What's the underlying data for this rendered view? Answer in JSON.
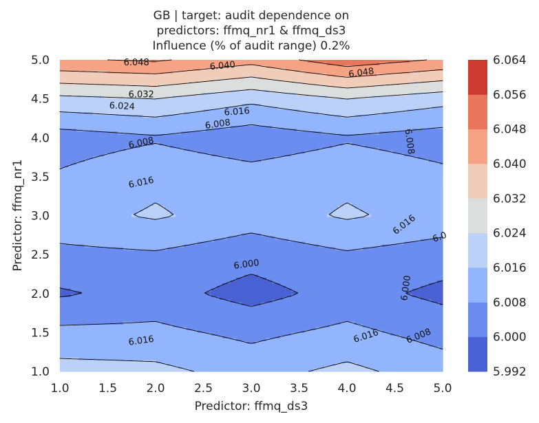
{
  "chart_data": {
    "type": "heatmap",
    "subtype": "filled-contour",
    "title_lines": [
      "GB | target: audit dependence on",
      "predictors: ffmq_nr1 & ffmq_ds3",
      "Influence (% of audit range) 0.2%"
    ],
    "xlabel": "Predictor: ffmq_ds3",
    "ylabel": "Predictor: ffmq_nr1",
    "xlim": [
      1.0,
      5.0
    ],
    "ylim": [
      1.0,
      5.0
    ],
    "x_ticks": [
      "1.0",
      "1.5",
      "2.0",
      "2.5",
      "3.0",
      "3.5",
      "4.0",
      "4.5",
      "5.0"
    ],
    "y_ticks": [
      "1.0",
      "1.5",
      "2.0",
      "2.5",
      "3.0",
      "3.5",
      "4.0",
      "4.5",
      "5.0"
    ],
    "x": [
      1.0,
      2.0,
      3.0,
      4.0,
      5.0
    ],
    "y": [
      1.0,
      1.5,
      2.0,
      2.5,
      3.0,
      3.5,
      4.0,
      4.5,
      5.0
    ],
    "z": [
      [
        6.019,
        6.018,
        6.013,
        6.018,
        6.012
      ],
      [
        6.01,
        6.01,
        6.006,
        6.01,
        6.005
      ],
      [
        5.999,
        6.003,
        5.997,
        6.003,
        5.998
      ],
      [
        6.006,
        6.007,
        6.003,
        6.007,
        6.004
      ],
      [
        6.013,
        6.017,
        6.012,
        6.017,
        6.013
      ],
      [
        6.009,
        6.014,
        6.011,
        6.014,
        6.01
      ],
      [
        6.004,
        6.007,
        6.003,
        6.007,
        6.004
      ],
      [
        6.022,
        6.024,
        6.018,
        6.024,
        6.019
      ],
      [
        6.047,
        6.049,
        6.043,
        6.053,
        6.047
      ]
    ],
    "levels": [
      5.992,
      6.0,
      6.008,
      6.016,
      6.024,
      6.032,
      6.04,
      6.048,
      6.056,
      6.064
    ],
    "colors": [
      "#4961d2",
      "#6b8df0",
      "#93b5fe",
      "#bbd1f8",
      "#dcdddd",
      "#f1cdb9",
      "#f6a385",
      "#e8765c",
      "#cc3a30"
    ],
    "colorbar_ticks": [
      "6.064",
      "6.056",
      "6.048",
      "6.040",
      "6.032",
      "6.024",
      "6.016",
      "6.008",
      "6.000",
      "5.992"
    ],
    "contour_labels": [
      {
        "text": "6.048",
        "x": 1.8,
        "y": 4.96,
        "angle": 0
      },
      {
        "text": "6.040",
        "x": 2.7,
        "y": 4.92,
        "angle": -5
      },
      {
        "text": "6.048",
        "x": 4.15,
        "y": 4.83,
        "angle": -8
      },
      {
        "text": "6.032",
        "x": 1.85,
        "y": 4.55,
        "angle": 0
      },
      {
        "text": "6.024",
        "x": 1.65,
        "y": 4.4,
        "angle": 3
      },
      {
        "text": "6.016",
        "x": 2.85,
        "y": 4.33,
        "angle": -4
      },
      {
        "text": "6.008",
        "x": 2.65,
        "y": 4.17,
        "angle": -8
      },
      {
        "text": "6.008",
        "x": 1.85,
        "y": 3.93,
        "angle": -12
      },
      {
        "text": "6.008",
        "x": 4.65,
        "y": 3.95,
        "angle": 82
      },
      {
        "text": "6.016",
        "x": 1.85,
        "y": 3.42,
        "angle": -12
      },
      {
        "text": "6.016",
        "x": 4.6,
        "y": 2.88,
        "angle": -38
      },
      {
        "text": "6.0",
        "x": 4.97,
        "y": 2.72,
        "angle": -20
      },
      {
        "text": "6.000",
        "x": 2.95,
        "y": 2.37,
        "angle": -8
      },
      {
        "text": "6.000",
        "x": 4.62,
        "y": 2.07,
        "angle": -82
      },
      {
        "text": "6.016",
        "x": 1.85,
        "y": 1.39,
        "angle": -8
      },
      {
        "text": "6.016",
        "x": 4.2,
        "y": 1.45,
        "angle": -18
      },
      {
        "text": "6.008",
        "x": 4.75,
        "y": 1.45,
        "angle": -22
      }
    ]
  }
}
